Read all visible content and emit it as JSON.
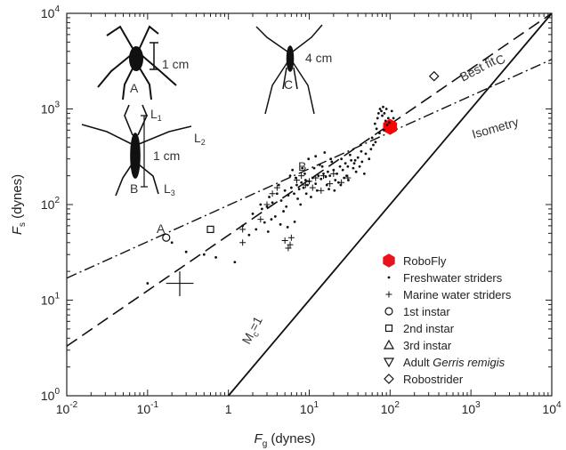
{
  "chart_data": {
    "type": "scatter",
    "x_scale": "log",
    "y_scale": "log",
    "xlim": [
      0.01,
      10000
    ],
    "ylim": [
      1,
      10000
    ],
    "xlabel": {
      "main": "F",
      "sub": "g",
      "unit": " (dynes)"
    },
    "ylabel": {
      "main": "F",
      "sub": "s",
      "unit": " (dynes)"
    },
    "x_ticks": [
      {
        "base": "10",
        "exp": "-2"
      },
      {
        "base": "10",
        "exp": "-1"
      },
      {
        "base": "1",
        "exp": ""
      },
      {
        "base": "10",
        "exp": "1"
      },
      {
        "base": "10",
        "exp": "2"
      },
      {
        "base": "10",
        "exp": "3"
      },
      {
        "base": "10",
        "exp": "4"
      }
    ],
    "y_ticks": [
      {
        "base": "10",
        "exp": "0"
      },
      {
        "base": "10",
        "exp": "1"
      },
      {
        "base": "10",
        "exp": "2"
      },
      {
        "base": "10",
        "exp": "3"
      },
      {
        "base": "10",
        "exp": "4"
      }
    ],
    "lines": {
      "best_fit": {
        "label": "Best fit",
        "points": [
          [
            0.01,
            3.3
          ],
          [
            10000,
            10000
          ]
        ]
      },
      "isometry": {
        "label": "Isometry",
        "points": [
          [
            0.01,
            17
          ],
          [
            10000,
            3300
          ]
        ]
      },
      "mc1": {
        "label_main": "M",
        "label_sub": "c",
        "label_rest": "=1",
        "points": [
          [
            1,
            1
          ],
          [
            10000,
            10000
          ]
        ]
      }
    },
    "annotations": {
      "best_fit_C": "C",
      "scatter_A": "A",
      "scatter_B": "B"
    },
    "series": [
      {
        "name": "RoboFly",
        "color": "#ff0000",
        "marker": "hexagon",
        "points": [
          [
            100,
            650
          ]
        ]
      },
      {
        "name": "Freshwater striders",
        "marker": "dot",
        "points": [
          [
            0.1,
            15
          ],
          [
            0.2,
            40
          ],
          [
            0.5,
            30
          ],
          [
            1.2,
            25
          ],
          [
            2,
            80
          ],
          [
            2.5,
            100
          ],
          [
            3,
            95
          ],
          [
            3.2,
            120
          ],
          [
            3.5,
            105
          ],
          [
            4,
            130
          ],
          [
            4.5,
            110
          ],
          [
            5,
            140
          ],
          [
            5.5,
            125
          ],
          [
            6,
            150
          ],
          [
            6.5,
            130
          ],
          [
            7,
            160
          ],
          [
            7.5,
            145
          ],
          [
            8,
            170
          ],
          [
            8.5,
            150
          ],
          [
            9,
            180
          ],
          [
            9.5,
            160
          ],
          [
            10,
            175
          ],
          [
            11,
            190
          ],
          [
            12,
            165
          ],
          [
            13,
            200
          ],
          [
            14,
            185
          ],
          [
            15,
            210
          ],
          [
            16,
            195
          ],
          [
            17,
            220
          ],
          [
            18,
            200
          ],
          [
            20,
            230
          ],
          [
            22,
            210
          ],
          [
            24,
            250
          ],
          [
            26,
            230
          ],
          [
            28,
            270
          ],
          [
            30,
            250
          ],
          [
            33,
            290
          ],
          [
            36,
            270
          ],
          [
            40,
            310
          ],
          [
            45,
            280
          ],
          [
            50,
            340
          ],
          [
            55,
            300
          ],
          [
            3.8,
            75
          ],
          [
            4.2,
            160
          ],
          [
            5.2,
            95
          ],
          [
            6.8,
            190
          ],
          [
            7.2,
            115
          ],
          [
            8.8,
            210
          ],
          [
            9.2,
            130
          ],
          [
            11.5,
            240
          ],
          [
            12.5,
            140
          ],
          [
            14.5,
            250
          ],
          [
            16.5,
            160
          ],
          [
            19,
            280
          ],
          [
            21,
            180
          ],
          [
            25,
            300
          ],
          [
            27,
            190
          ],
          [
            32,
            330
          ],
          [
            38,
            220
          ],
          [
            44,
            360
          ],
          [
            2.2,
            55
          ],
          [
            2.8,
            65
          ],
          [
            3.4,
            70
          ],
          [
            4.8,
            85
          ],
          [
            5.8,
            200
          ],
          [
            6.2,
            230
          ],
          [
            7.8,
            100
          ],
          [
            10.5,
            120
          ],
          [
            13.5,
            260
          ],
          [
            17.5,
            145
          ],
          [
            23,
            170
          ],
          [
            29,
            200
          ],
          [
            35,
            240
          ],
          [
            42,
            250
          ],
          [
            48,
            210
          ],
          [
            60,
            500
          ],
          [
            65,
            700
          ],
          [
            70,
            800
          ],
          [
            72,
            900
          ],
          [
            75,
            1000
          ],
          [
            78,
            950
          ],
          [
            80,
            850
          ],
          [
            82,
            1050
          ],
          [
            85,
            900
          ],
          [
            88,
            750
          ],
          [
            90,
            1000
          ],
          [
            92,
            680
          ],
          [
            95,
            800
          ],
          [
            98,
            720
          ],
          [
            105,
            950
          ],
          [
            110,
            800
          ],
          [
            68,
            620
          ],
          [
            74,
            560
          ],
          [
            84,
            600
          ],
          [
            58,
            380
          ],
          [
            62,
            420
          ],
          [
            66,
            450
          ],
          [
            1.5,
            60
          ],
          [
            1.8,
            48
          ],
          [
            2.6,
            90
          ],
          [
            3.1,
            52
          ],
          [
            4.4,
            62
          ],
          [
            5.4,
            58
          ],
          [
            6.6,
            66
          ],
          [
            8.2,
            240
          ],
          [
            9.8,
            300
          ],
          [
            12,
            320
          ],
          [
            15.5,
            350
          ],
          [
            18.5,
            300
          ],
          [
            20.5,
            140
          ],
          [
            24.5,
            160
          ],
          [
            30.5,
            180
          ],
          [
            37,
            290
          ],
          [
            0.3,
            32
          ],
          [
            0.7,
            28
          ]
        ]
      },
      {
        "name": "Marine water striders",
        "marker": "plus",
        "points": [
          [
            1.5,
            40
          ],
          [
            1.5,
            55
          ],
          [
            2.5,
            70
          ],
          [
            3,
            100
          ],
          [
            3.5,
            130
          ],
          [
            4,
            150
          ],
          [
            5,
            42
          ],
          [
            5.5,
            35
          ],
          [
            6,
            45
          ],
          [
            5.8,
            38
          ],
          [
            7,
            180
          ],
          [
            8,
            200
          ],
          [
            10,
            175
          ],
          [
            12,
            190
          ],
          [
            15,
            200
          ],
          [
            20,
            210
          ],
          [
            25,
            170
          ],
          [
            30,
            190
          ],
          [
            9,
            160
          ],
          [
            11,
            150
          ],
          [
            14,
            140
          ],
          [
            18,
            165
          ]
        ]
      },
      {
        "name": "1st instar",
        "marker": "circle",
        "points": [
          [
            0.17,
            45
          ]
        ]
      },
      {
        "name": "2nd instar",
        "marker": "square",
        "points": [
          [
            0.6,
            55
          ]
        ]
      },
      {
        "name": "3rd instar",
        "marker": "triangle-up",
        "points": []
      },
      {
        "name": "Adult Gerris remigis",
        "marker": "triangle-down",
        "points": []
      },
      {
        "name": "Robostrider",
        "marker": "diamond",
        "points": [
          [
            350,
            2200
          ]
        ]
      }
    ],
    "error_cross": {
      "x": 0.25,
      "y": 15,
      "x_range": [
        0.17,
        0.37
      ],
      "y_range": [
        11,
        20
      ]
    }
  },
  "legend": {
    "items": [
      {
        "symbol": "hexagon",
        "label": "RoboFly",
        "color": "#e8141c"
      },
      {
        "symbol": "dot",
        "label": "Freshwater striders"
      },
      {
        "symbol": "plus",
        "label": "Marine water striders"
      },
      {
        "symbol": "circle",
        "label": "1st instar"
      },
      {
        "symbol": "square",
        "label": "2nd instar"
      },
      {
        "symbol": "triangle-up",
        "label": "3rd instar"
      },
      {
        "symbol": "triangle-down",
        "label": "Adult ",
        "italic_part": "Gerris remigis"
      },
      {
        "symbol": "diamond",
        "label": "Robostrider"
      }
    ]
  },
  "insets": [
    {
      "name": "strider-A",
      "letter": "A",
      "scale": "1 cm"
    },
    {
      "name": "strider-B",
      "letter": "B",
      "scale": "1 cm",
      "labels": {
        "l1_main": "L",
        "l1_sub": "1",
        "l2_main": "L",
        "l2_sub": "2",
        "l3_main": "L",
        "l3_sub": "3"
      }
    },
    {
      "name": "strider-C",
      "letter": "C",
      "scale": "4 cm"
    }
  ]
}
